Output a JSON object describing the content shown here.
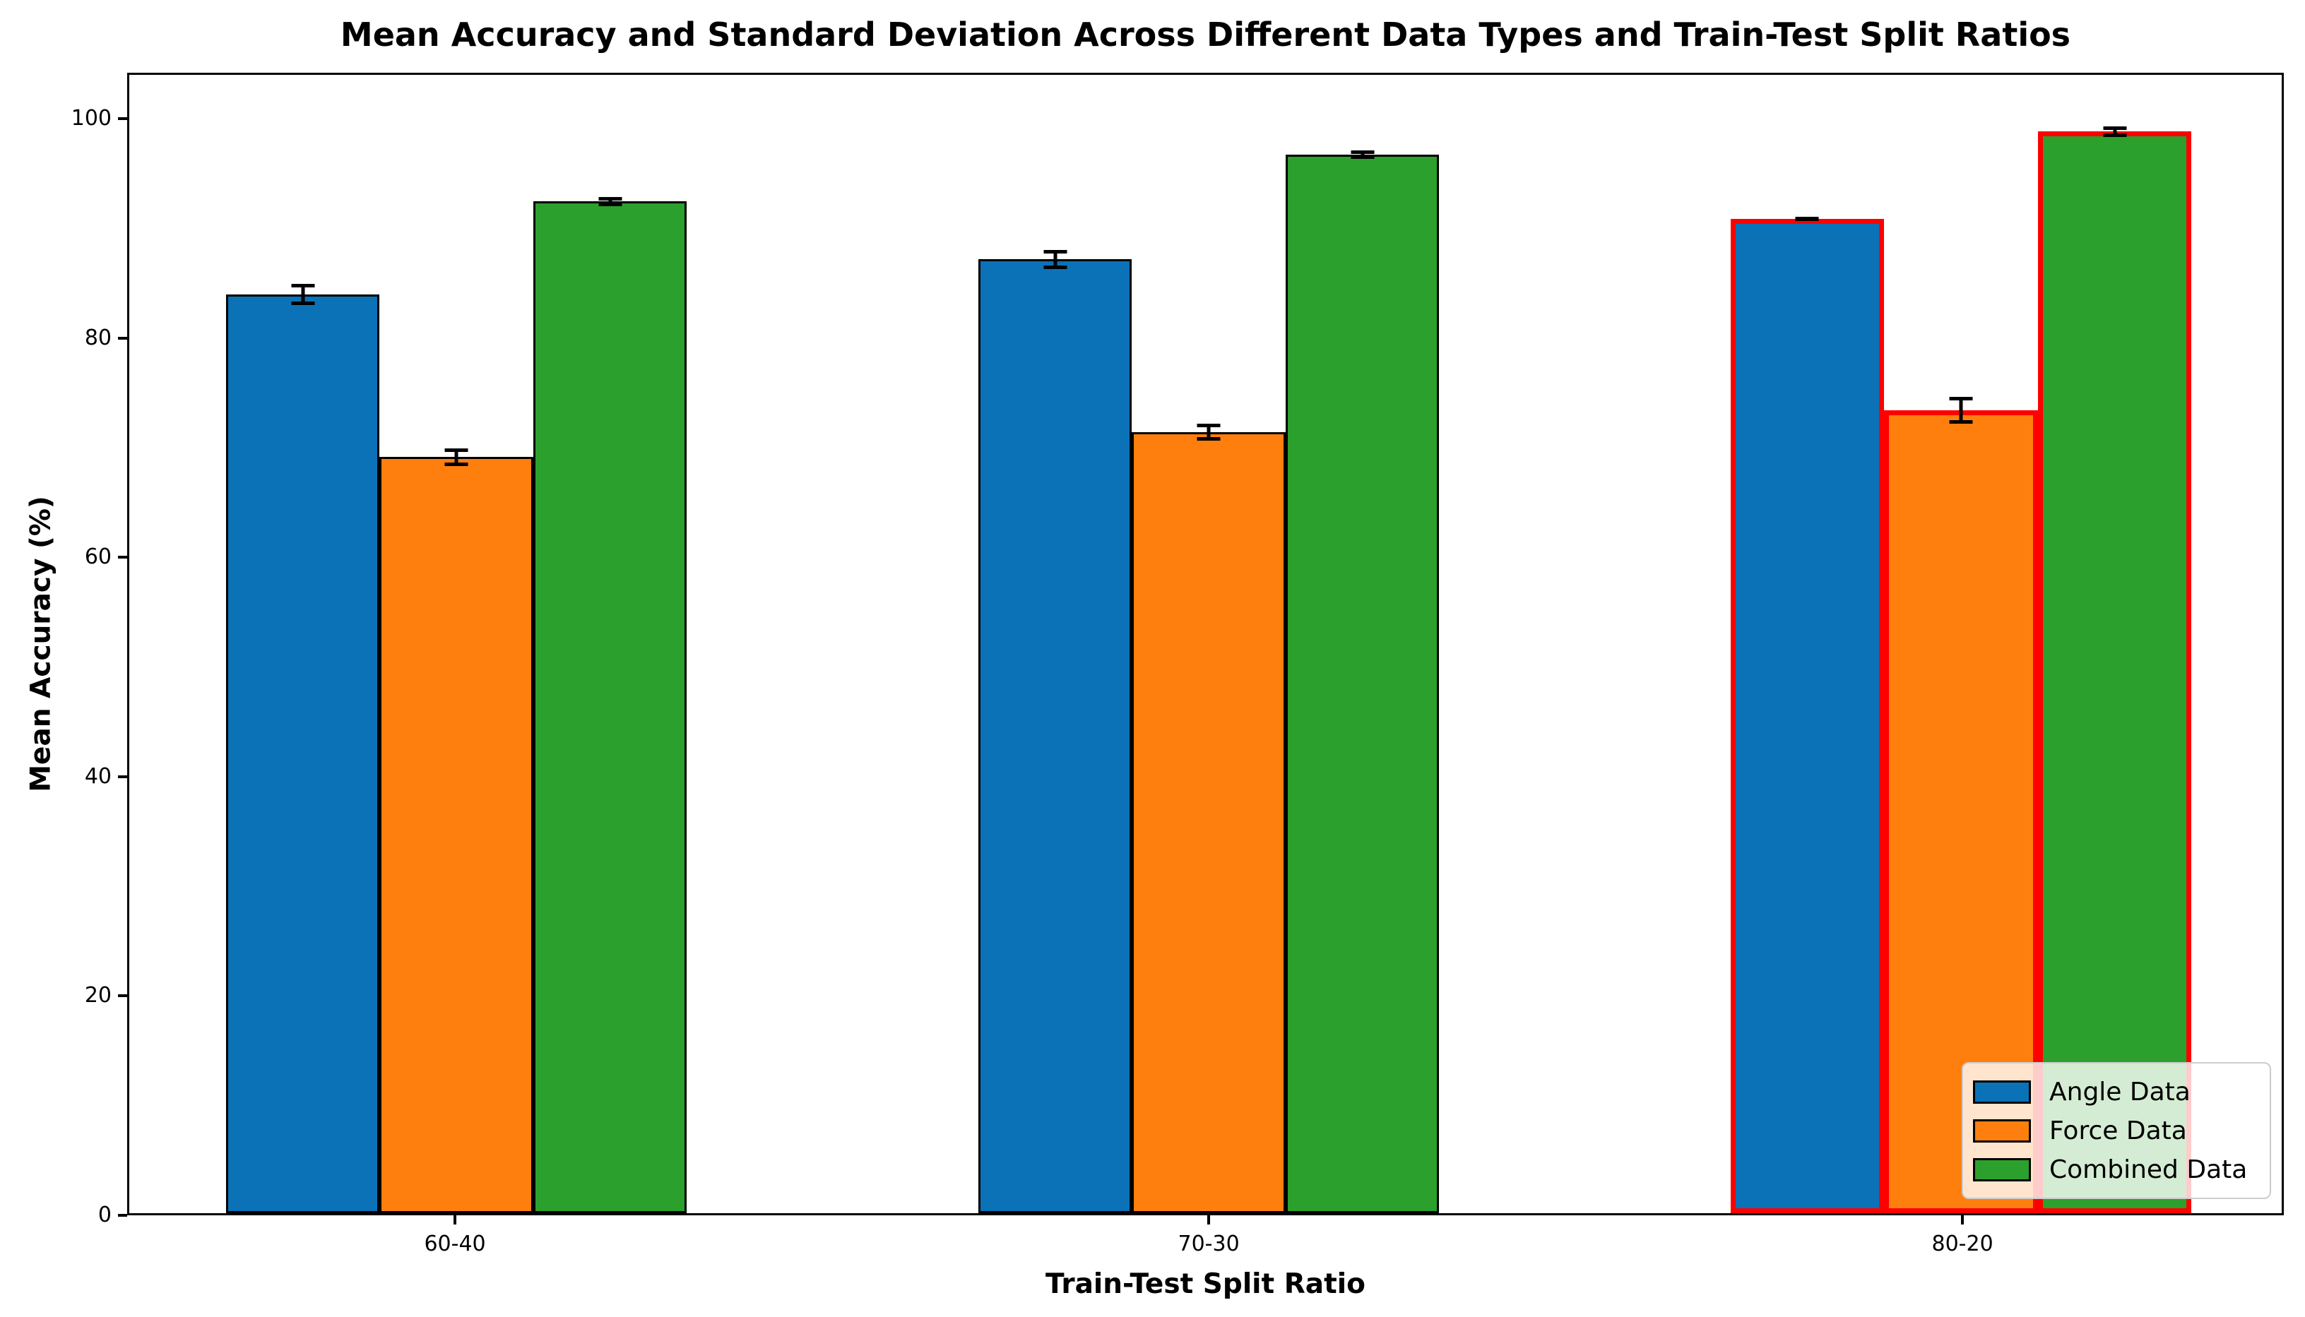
{
  "chart_data": {
    "type": "bar",
    "title": "Mean Accuracy and Standard Deviation Across Different Data Types and Train-Test Split Ratios",
    "xlabel": "Train-Test Split Ratio",
    "ylabel": "Mean Accuracy (%)",
    "categories": [
      "60-40",
      "70-30",
      "80-20"
    ],
    "series": [
      {
        "name": "Angle Data",
        "color": "#0b72b8",
        "values": [
          84.1,
          87.3,
          91.0
        ],
        "errors": [
          1.0,
          0.9,
          0.2
        ]
      },
      {
        "name": "Force Data",
        "color": "#ff7f0e",
        "values": [
          69.2,
          71.5,
          73.5
        ],
        "errors": [
          0.8,
          0.8,
          1.2
        ]
      },
      {
        "name": "Combined Data",
        "color": "#2ca02c",
        "values": [
          92.6,
          96.9,
          99.0
        ],
        "errors": [
          0.4,
          0.4,
          0.5
        ]
      }
    ],
    "yticks": [
      0,
      20,
      40,
      60,
      80,
      100
    ],
    "ytick_labels": [
      "0",
      "20",
      "40",
      "60",
      "80",
      "100"
    ],
    "ylim": [
      0,
      104.2
    ],
    "grid": false,
    "legend_position": "lower right",
    "error_bar_color": "#000000",
    "bar_edge_color": "#000000",
    "highlight": {
      "category": "80-20",
      "edge_color": "#ff0000"
    },
    "legend_items": [
      "Angle Data",
      "Force Data",
      "Combined Data"
    ]
  }
}
